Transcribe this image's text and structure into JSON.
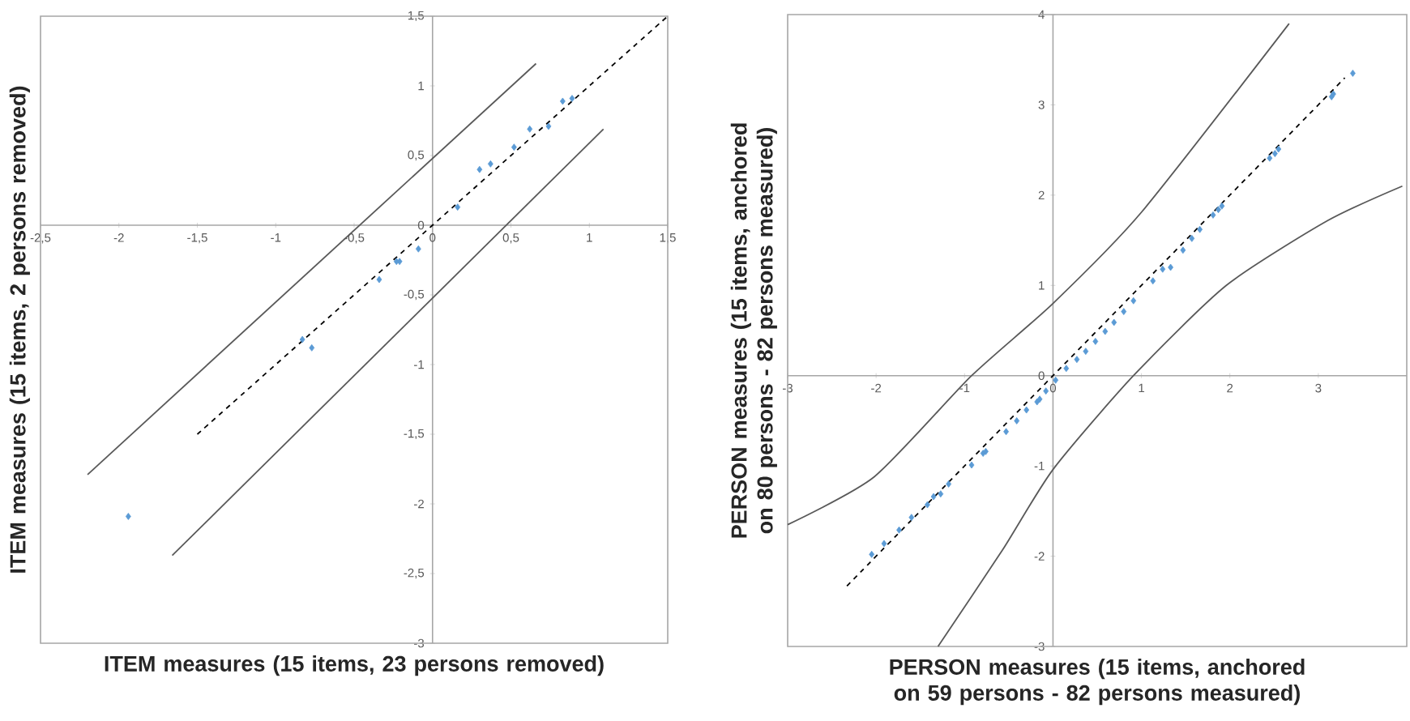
{
  "chart_data": [
    {
      "type": "scatter",
      "xlabel": "ITEM measures (15 items, 23 persons removed)",
      "ylabel": "ITEM measures (15 items, 2 persons removed)",
      "xlim": [
        -2.5,
        1.5
      ],
      "ylim": [
        -3,
        1.5
      ],
      "xticks": [
        {
          "value": -2.5,
          "label": "-2,5"
        },
        -2,
        {
          "value": -1.5,
          "label": "-1,5"
        },
        -1,
        {
          "value": -0.5,
          "label": "-0,5"
        },
        0,
        {
          "value": 0.5,
          "label": "0,5"
        },
        1,
        {
          "value": 1.5,
          "label": "1,5"
        }
      ],
      "yticks": [
        -3,
        {
          "value": -2.5,
          "label": "-2,5"
        },
        -2,
        {
          "value": -1.5,
          "label": "-1,5"
        },
        -1,
        {
          "value": -0.5,
          "label": "-0,5"
        },
        0,
        {
          "value": 0.5,
          "label": "0,5"
        },
        1,
        {
          "value": 1.5,
          "label": "1,5"
        }
      ],
      "grid": false,
      "series": [
        {
          "type": "line",
          "color": "#595959",
          "line_style": "solid",
          "marker": "none",
          "x": [
            -2.2,
            0.66
          ],
          "values": [
            -1.79,
            1.16
          ]
        },
        {
          "type": "line",
          "color": "#595959",
          "line_style": "solid",
          "marker": "none",
          "x": [
            -1.66,
            1.09
          ],
          "values": [
            -2.37,
            0.69
          ]
        },
        {
          "type": "line",
          "color": "#000000",
          "line_style": "dashed",
          "marker": "none",
          "x": [
            -1.5,
            1.5
          ],
          "values": [
            -1.5,
            1.5
          ]
        },
        {
          "color": "#5b9bd5",
          "marker": "diamond",
          "x": [
            0.16,
            0.3,
            0.37,
            0.52,
            0.62,
            0.74,
            0.83,
            0.89,
            -0.09,
            -0.21,
            -0.23,
            -0.34,
            -0.83,
            -0.77,
            -1.94
          ],
          "values": [
            0.13,
            0.4,
            0.44,
            0.56,
            0.69,
            0.71,
            0.89,
            0.91,
            -0.17,
            -0.26,
            -0.26,
            -0.39,
            -0.82,
            -0.88,
            -2.09
          ]
        }
      ]
    },
    {
      "type": "scatter",
      "xlabel": "PERSON measures (15 items, anchored on 59 persons - 82 persons measured)",
      "ylabel": "PERSON measures (15 items, anchored on 80 persons - 82 persons measured)",
      "xlim": [
        -3,
        4
      ],
      "ylim": [
        -3,
        4
      ],
      "xticks": [
        -3,
        -2,
        -1,
        0,
        1,
        2,
        3
      ],
      "yticks": [
        -3,
        -2,
        -1,
        0,
        1,
        2,
        3,
        4
      ],
      "grid": false,
      "series": [
        {
          "type": "line",
          "color": "#595959",
          "line_style": "solid",
          "marker": "none",
          "x": [
            -3,
            -2.02,
            -0.92,
            0,
            1,
            2.67
          ],
          "values": [
            -1.65,
            -1.12,
            0,
            0.8,
            1.81,
            3.9
          ]
        },
        {
          "type": "line",
          "color": "#595959",
          "line_style": "solid",
          "marker": "none",
          "x": [
            -1.3,
            -0.57,
            0,
            0.91,
            1.96,
            3.11,
            3.95
          ],
          "values": [
            -3,
            -1.93,
            -1.04,
            0,
            1.0,
            1.72,
            2.1
          ]
        },
        {
          "type": "line",
          "color": "#000000",
          "line_style": "dashed",
          "marker": "none",
          "x": [
            -2.33,
            3.3
          ],
          "values": [
            -2.33,
            3.3
          ]
        },
        {
          "color": "#5b9bd5",
          "marker": "diamond",
          "x": [
            3.39,
            3.15,
            3.17,
            2.45,
            2.51,
            2.55,
            1.81,
            1.87,
            1.91,
            1.66,
            1.57,
            1.47,
            1.33,
            1.24,
            1.13,
            0.91,
            0.8,
            0.69,
            0.59,
            0.48,
            0.37,
            0.27,
            0.15,
            0.03,
            -0.08,
            -0.15,
            -0.18,
            -0.3,
            -0.41,
            -0.53,
            -0.79,
            -0.76,
            -0.92,
            -1.18,
            -1.27,
            -1.35,
            -1.42,
            -1.6,
            -1.74,
            -1.91,
            -2.05
          ],
          "values": [
            3.35,
            3.09,
            3.12,
            2.41,
            2.46,
            2.51,
            1.78,
            1.84,
            1.88,
            1.62,
            1.52,
            1.39,
            1.2,
            1.18,
            1.05,
            0.83,
            0.71,
            0.59,
            0.49,
            0.38,
            0.27,
            0.18,
            0.08,
            -0.05,
            -0.17,
            -0.26,
            -0.29,
            -0.38,
            -0.5,
            -0.62,
            -0.86,
            -0.84,
            -0.99,
            -1.2,
            -1.31,
            -1.34,
            -1.43,
            -1.57,
            -1.71,
            -1.86,
            -1.98
          ]
        }
      ]
    }
  ]
}
